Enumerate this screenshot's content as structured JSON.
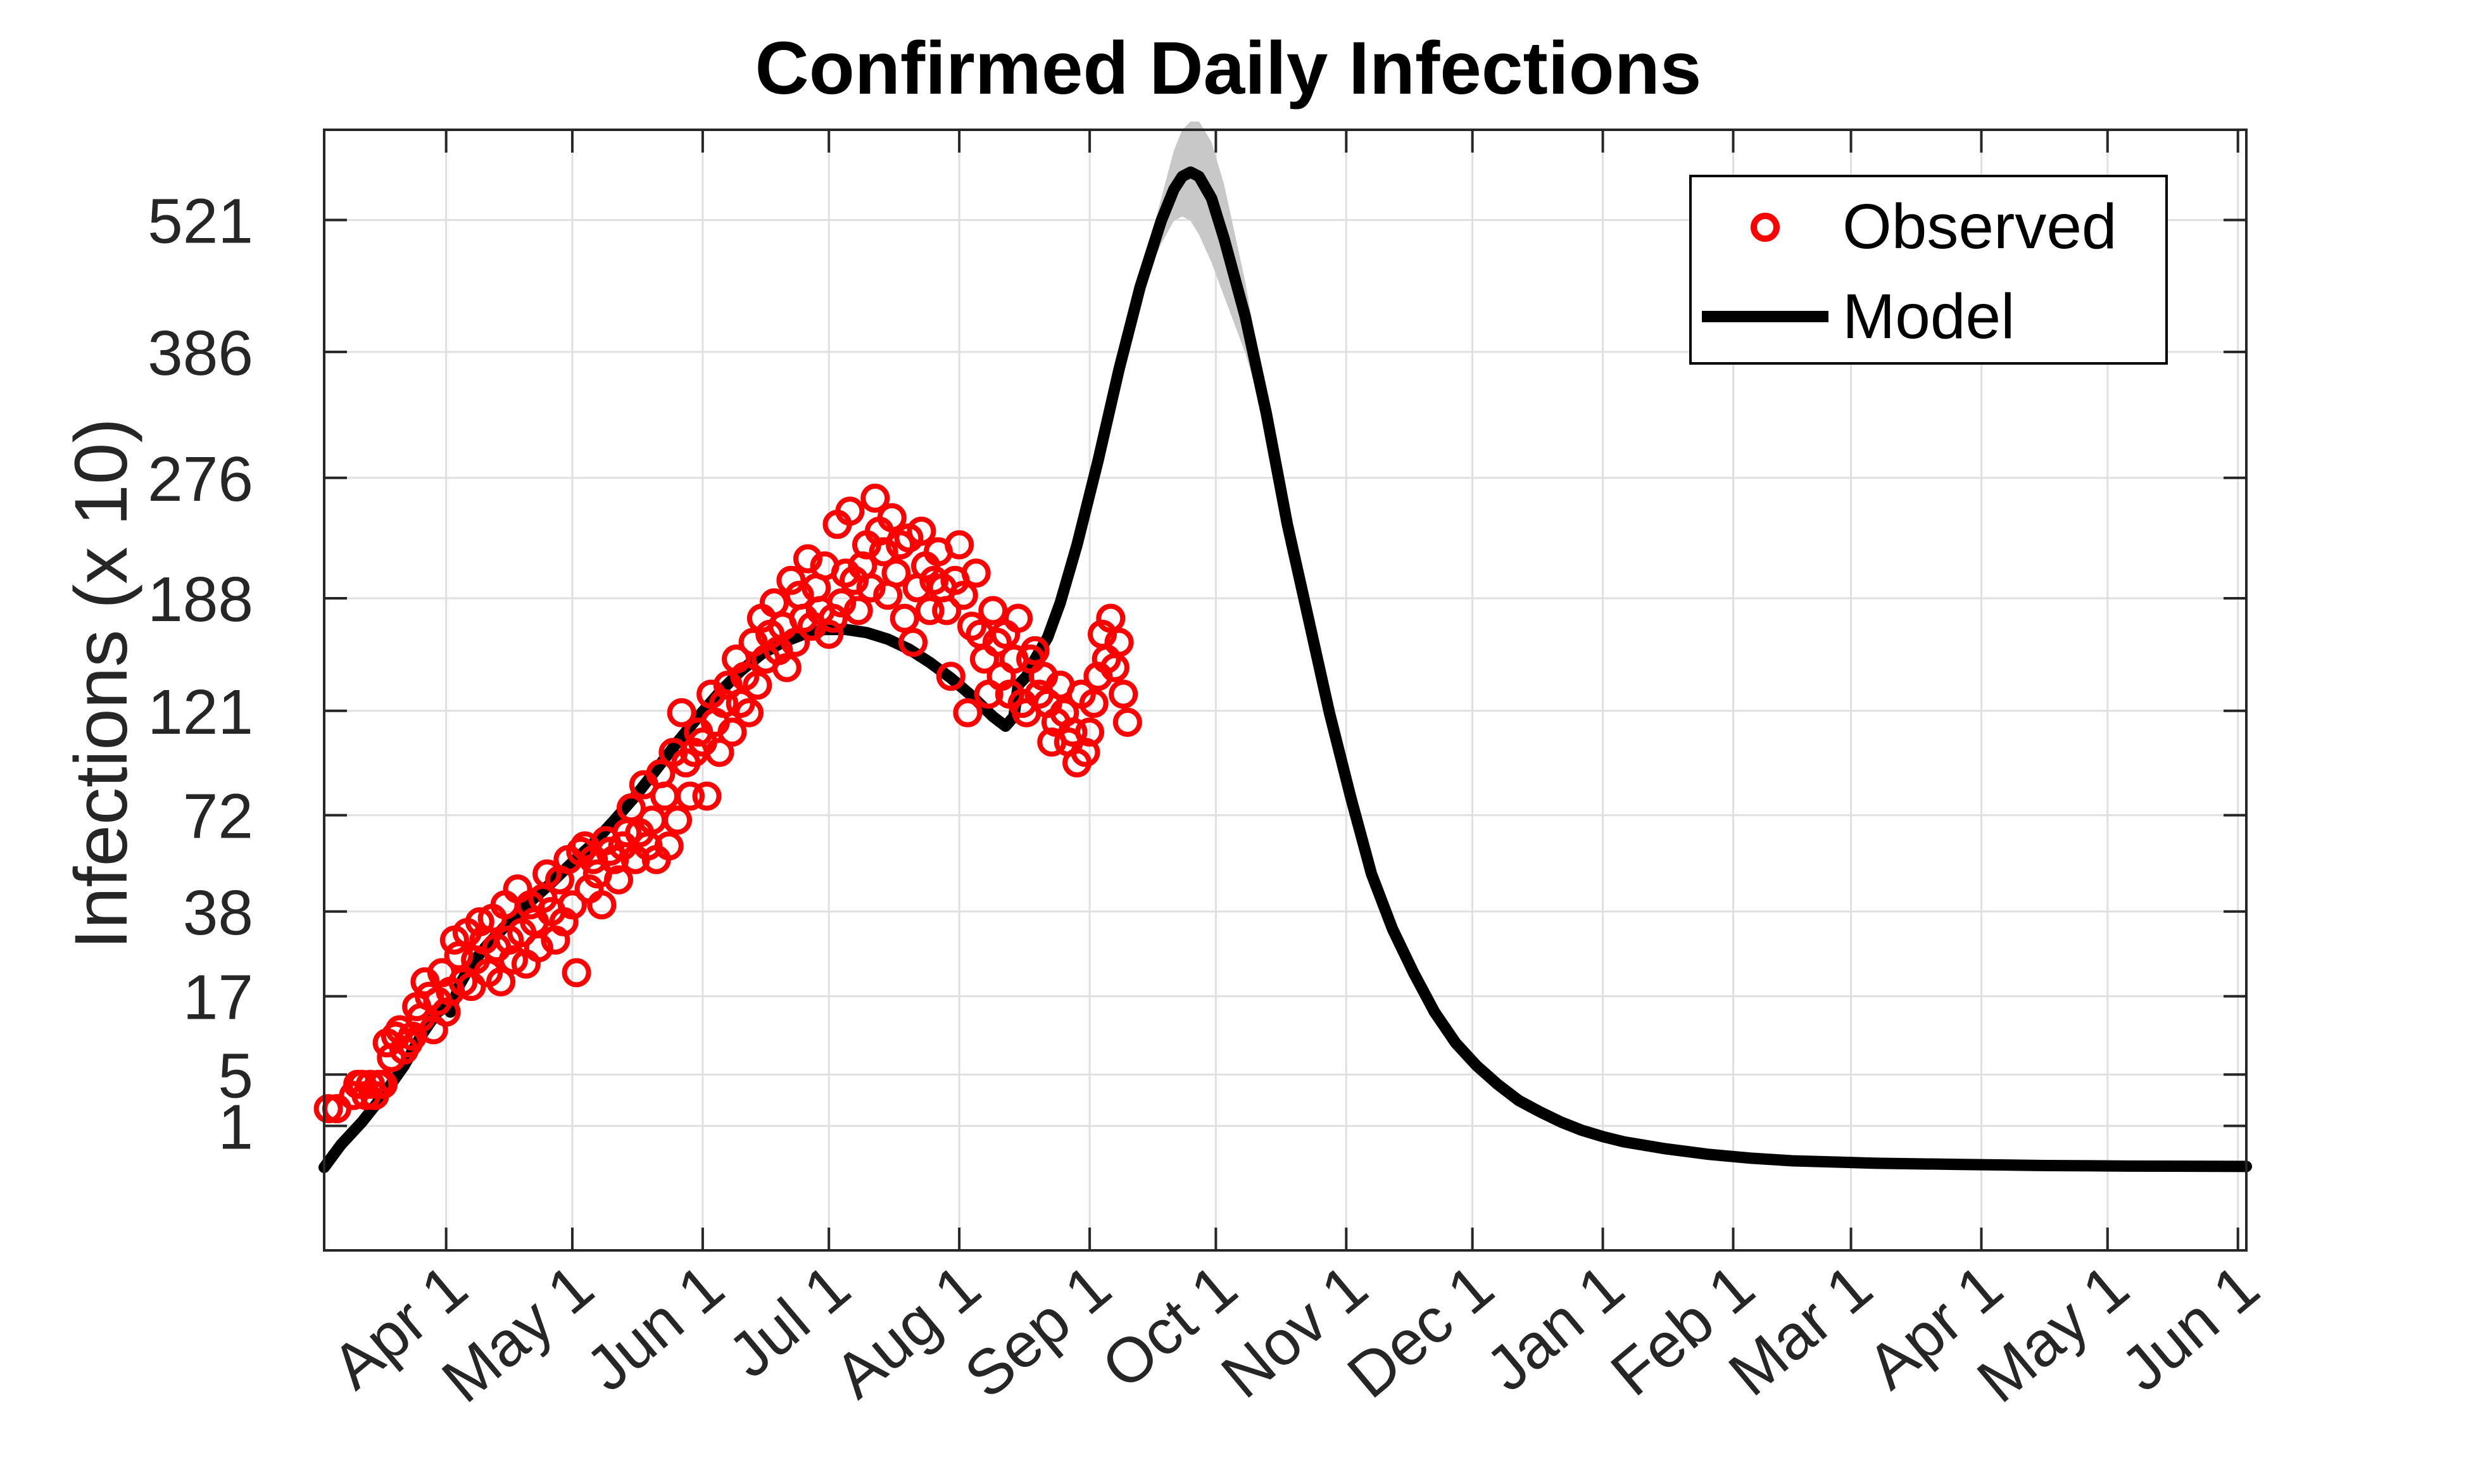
{
  "chart_data": {
    "type": "line",
    "title": "Confirmed Daily Infections",
    "xlabel": "",
    "ylabel": "Infections (x 10)",
    "x_ticks": [
      "Apr 1",
      "May 1",
      "Jun 1",
      "Jul 1",
      "Aug 1",
      "Sep 1",
      "Oct 1",
      "Nov 1",
      "Dec 1",
      "Jan 1",
      "Feb 1",
      "Mar 1",
      "Apr 1",
      "May 1",
      "Jun 1"
    ],
    "x_tick_days": [
      0,
      30,
      61,
      91,
      122,
      153,
      183,
      214,
      244,
      275,
      306,
      334,
      365,
      395,
      426
    ],
    "xlim": [
      -29,
      428
    ],
    "y_ticks": [
      "1",
      "5",
      "17",
      "38",
      "72",
      "121",
      "188",
      "276",
      "386",
      "521"
    ],
    "ylim_sqrt": [
      -2.0,
      25.0
    ],
    "grid": true,
    "legend": {
      "position": "top-right",
      "entries": [
        "Observed",
        "Model"
      ]
    },
    "colors": {
      "observed": "#ff0000",
      "model": "#000000",
      "band": "#c8c8c8",
      "axis": "#262626",
      "grid": "#e0e0e0"
    },
    "series": [
      {
        "name": "Observed",
        "kind": "scatter",
        "points": [
          [
            -28,
            2
          ],
          [
            -26,
            2
          ],
          [
            -22,
            3
          ],
          [
            -21,
            4
          ],
          [
            -20,
            4
          ],
          [
            -19,
            3
          ],
          [
            -18,
            4
          ],
          [
            -17,
            3
          ],
          [
            -16,
            4
          ],
          [
            -15,
            4
          ],
          [
            -14,
            9
          ],
          [
            -13,
            7
          ],
          [
            -12,
            10
          ],
          [
            -11,
            11
          ],
          [
            -10,
            8
          ],
          [
            -9,
            9
          ],
          [
            -8,
            10
          ],
          [
            -7,
            15
          ],
          [
            -6,
            13
          ],
          [
            -5,
            20
          ],
          [
            -4,
            17
          ],
          [
            -3,
            11
          ],
          [
            -2,
            16
          ],
          [
            -1,
            22
          ],
          [
            0,
            14
          ],
          [
            1,
            18
          ],
          [
            2,
            30
          ],
          [
            3,
            26
          ],
          [
            4,
            20
          ],
          [
            5,
            32
          ],
          [
            6,
            19
          ],
          [
            7,
            25
          ],
          [
            8,
            35
          ],
          [
            9,
            30
          ],
          [
            10,
            22
          ],
          [
            11,
            36
          ],
          [
            12,
            28
          ],
          [
            13,
            20
          ],
          [
            14,
            40
          ],
          [
            15,
            30
          ],
          [
            16,
            25
          ],
          [
            17,
            45
          ],
          [
            18,
            32
          ],
          [
            19,
            24
          ],
          [
            20,
            40
          ],
          [
            21,
            35
          ],
          [
            22,
            28
          ],
          [
            23,
            42
          ],
          [
            24,
            50
          ],
          [
            25,
            38
          ],
          [
            26,
            30
          ],
          [
            27,
            48
          ],
          [
            28,
            35
          ],
          [
            29,
            55
          ],
          [
            30,
            40
          ],
          [
            31,
            22
          ],
          [
            32,
            58
          ],
          [
            33,
            60
          ],
          [
            34,
            45
          ],
          [
            35,
            55
          ],
          [
            36,
            50
          ],
          [
            37,
            40
          ],
          [
            38,
            62
          ],
          [
            39,
            58
          ],
          [
            40,
            55
          ],
          [
            41,
            48
          ],
          [
            42,
            60
          ],
          [
            43,
            65
          ],
          [
            44,
            75
          ],
          [
            45,
            55
          ],
          [
            46,
            65
          ],
          [
            47,
            85
          ],
          [
            48,
            60
          ],
          [
            49,
            70
          ],
          [
            50,
            55
          ],
          [
            51,
            90
          ],
          [
            52,
            80
          ],
          [
            53,
            60
          ],
          [
            54,
            100
          ],
          [
            55,
            70
          ],
          [
            56,
            120
          ],
          [
            57,
            95
          ],
          [
            58,
            80
          ],
          [
            59,
            100
          ],
          [
            60,
            110
          ],
          [
            61,
            105
          ],
          [
            62,
            80
          ],
          [
            63,
            130
          ],
          [
            64,
            115
          ],
          [
            65,
            100
          ],
          [
            66,
            125
          ],
          [
            67,
            135
          ],
          [
            68,
            110
          ],
          [
            69,
            150
          ],
          [
            70,
            125
          ],
          [
            71,
            140
          ],
          [
            72,
            120
          ],
          [
            73,
            160
          ],
          [
            74,
            135
          ],
          [
            75,
            175
          ],
          [
            76,
            150
          ],
          [
            77,
            165
          ],
          [
            78,
            185
          ],
          [
            79,
            155
          ],
          [
            80,
            170
          ],
          [
            81,
            145
          ],
          [
            82,
            200
          ],
          [
            83,
            160
          ],
          [
            84,
            190
          ],
          [
            85,
            175
          ],
          [
            86,
            215
          ],
          [
            87,
            170
          ],
          [
            88,
            195
          ],
          [
            89,
            180
          ],
          [
            90,
            210
          ],
          [
            91,
            165
          ],
          [
            92,
            175
          ],
          [
            93,
            240
          ],
          [
            94,
            185
          ],
          [
            95,
            205
          ],
          [
            96,
            250
          ],
          [
            97,
            200
          ],
          [
            98,
            180
          ],
          [
            99,
            210
          ],
          [
            100,
            225
          ],
          [
            101,
            195
          ],
          [
            102,
            260
          ],
          [
            103,
            235
          ],
          [
            104,
            220
          ],
          [
            105,
            190
          ],
          [
            106,
            245
          ],
          [
            107,
            205
          ],
          [
            108,
            225
          ],
          [
            109,
            175
          ],
          [
            110,
            230
          ],
          [
            111,
            160
          ],
          [
            112,
            195
          ],
          [
            113,
            235
          ],
          [
            114,
            210
          ],
          [
            115,
            180
          ],
          [
            116,
            200
          ],
          [
            117,
            220
          ],
          [
            118,
            195
          ],
          [
            119,
            180
          ],
          [
            120,
            140
          ],
          [
            121,
            200
          ],
          [
            122,
            225
          ],
          [
            123,
            190
          ],
          [
            124,
            120
          ],
          [
            125,
            170
          ],
          [
            126,
            205
          ],
          [
            127,
            165
          ],
          [
            128,
            150
          ],
          [
            129,
            130
          ],
          [
            130,
            180
          ],
          [
            131,
            160
          ],
          [
            132,
            140
          ],
          [
            133,
            165
          ],
          [
            134,
            130
          ],
          [
            135,
            150
          ],
          [
            136,
            175
          ],
          [
            137,
            125
          ],
          [
            138,
            120
          ],
          [
            139,
            150
          ],
          [
            140,
            155
          ],
          [
            141,
            130
          ],
          [
            142,
            140
          ],
          [
            143,
            125
          ],
          [
            144,
            105
          ],
          [
            145,
            115
          ],
          [
            146,
            135
          ],
          [
            147,
            120
          ],
          [
            148,
            105
          ],
          [
            149,
            110
          ],
          [
            150,
            95
          ],
          [
            151,
            130
          ],
          [
            152,
            100
          ],
          [
            153,
            110
          ],
          [
            154,
            125
          ],
          [
            155,
            140
          ],
          [
            156,
            165
          ],
          [
            157,
            150
          ],
          [
            158,
            175
          ],
          [
            159,
            145
          ],
          [
            160,
            160
          ],
          [
            161,
            130
          ],
          [
            162,
            115
          ]
        ]
      },
      {
        "name": "Model",
        "kind": "line",
        "points": [
          [
            -29,
            0
          ],
          [
            -25,
            0.3
          ],
          [
            -20,
            1.2
          ],
          [
            -15,
            3
          ],
          [
            -10,
            6
          ],
          [
            -6,
            10
          ],
          [
            -4,
            12
          ],
          [
            -2,
            14
          ],
          [
            0,
            15
          ],
          [
            1,
            14
          ],
          [
            3,
            19
          ],
          [
            6,
            24
          ],
          [
            10,
            29
          ],
          [
            15,
            35
          ],
          [
            20,
            41
          ],
          [
            25,
            47
          ],
          [
            30,
            54
          ],
          [
            35,
            61
          ],
          [
            40,
            70
          ],
          [
            45,
            80
          ],
          [
            50,
            92
          ],
          [
            55,
            105
          ],
          [
            60,
            118
          ],
          [
            65,
            131
          ],
          [
            70,
            143
          ],
          [
            75,
            153
          ],
          [
            80,
            160
          ],
          [
            85,
            165
          ],
          [
            90,
            168
          ],
          [
            95,
            168
          ],
          [
            100,
            166
          ],
          [
            105,
            162
          ],
          [
            110,
            156
          ],
          [
            115,
            148
          ],
          [
            120,
            139
          ],
          [
            125,
            129
          ],
          [
            130,
            118
          ],
          [
            133,
            113
          ],
          [
            135,
            118
          ],
          [
            136,
            135
          ],
          [
            138,
            140
          ],
          [
            140,
            150
          ],
          [
            143,
            163
          ],
          [
            146,
            185
          ],
          [
            150,
            225
          ],
          [
            155,
            290
          ],
          [
            160,
            370
          ],
          [
            165,
            450
          ],
          [
            170,
            520
          ],
          [
            173,
            555
          ],
          [
            175,
            570
          ],
          [
            177,
            575
          ],
          [
            179,
            570
          ],
          [
            182,
            545
          ],
          [
            185,
            500
          ],
          [
            190,
            420
          ],
          [
            195,
            330
          ],
          [
            200,
            240
          ],
          [
            205,
            175
          ],
          [
            210,
            120
          ],
          [
            215,
            80
          ],
          [
            220,
            50
          ],
          [
            225,
            33
          ],
          [
            230,
            22
          ],
          [
            235,
            14
          ],
          [
            240,
            9
          ],
          [
            245,
            6
          ],
          [
            250,
            4
          ],
          [
            255,
            2.6
          ],
          [
            260,
            1.8
          ],
          [
            265,
            1.2
          ],
          [
            270,
            0.8
          ],
          [
            275,
            0.55
          ],
          [
            280,
            0.38
          ],
          [
            290,
            0.2
          ],
          [
            300,
            0.1
          ],
          [
            310,
            0.05
          ],
          [
            320,
            0.025
          ],
          [
            340,
            0.01
          ],
          [
            360,
            0.005
          ],
          [
            380,
            0.002
          ],
          [
            400,
            0.001
          ],
          [
            428,
            0.0005
          ]
        ]
      },
      {
        "name": "Model band",
        "kind": "band",
        "points": [
          [
            160,
            370,
            375
          ],
          [
            165,
            445,
            460
          ],
          [
            170,
            495,
            545
          ],
          [
            173,
            520,
            600
          ],
          [
            175,
            525,
            625
          ],
          [
            177,
            520,
            635
          ],
          [
            179,
            505,
            635
          ],
          [
            182,
            475,
            610
          ],
          [
            185,
            440,
            560
          ],
          [
            190,
            385,
            455
          ],
          [
            195,
            320,
            340
          ]
        ]
      }
    ]
  }
}
